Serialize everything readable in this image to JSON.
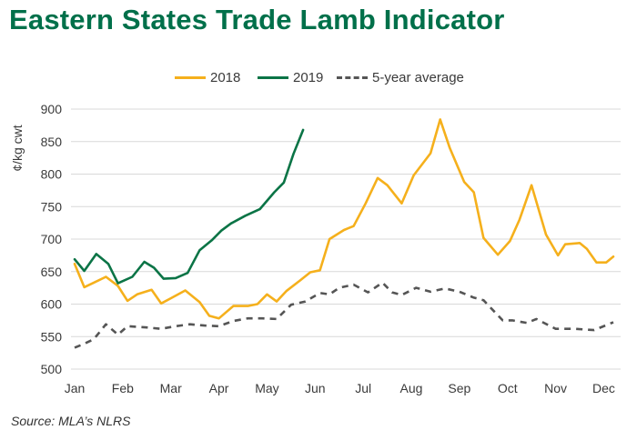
{
  "title": "Eastern States Trade Lamb Indicator",
  "source": "Source: MLA’s NLRS",
  "chart_data": {
    "type": "line",
    "title": "Eastern States Trade Lamb Indicator",
    "ylabel": "¢/kg cwt",
    "xlabel": "",
    "ylim": [
      500,
      900
    ],
    "yticks": [
      500,
      550,
      600,
      650,
      700,
      750,
      800,
      850,
      900
    ],
    "xlim": [
      0,
      11.2
    ],
    "month_labels": [
      "Jan",
      "Feb",
      "Mar",
      "Apr",
      "May",
      "Jun",
      "Jul",
      "Aug",
      "Sep",
      "Oct",
      "Nov",
      "Dec"
    ],
    "grid": "horizontal",
    "legend_position": "top-center",
    "series": [
      {
        "name": "2018",
        "color": "#f5b01c",
        "style": "solid",
        "x": [
          0,
          0.2,
          0.4,
          0.65,
          0.9,
          1.1,
          1.3,
          1.6,
          1.8,
          2.0,
          2.3,
          2.6,
          2.8,
          3.0,
          3.3,
          3.6,
          3.8,
          4.0,
          4.2,
          4.4,
          4.7,
          4.9,
          5.1,
          5.3,
          5.6,
          5.8,
          6.05,
          6.3,
          6.5,
          6.8,
          7.05,
          7.4,
          7.6,
          7.8,
          8.1,
          8.3,
          8.5,
          8.8,
          9.05,
          9.25,
          9.5,
          9.8,
          10.05,
          10.2,
          10.5,
          10.65,
          10.85,
          11.05,
          11.2
        ],
        "values": [
          662,
          626,
          633,
          642,
          628,
          605,
          615,
          622,
          601,
          609,
          621,
          603,
          582,
          578,
          597,
          597,
          600,
          615,
          604,
          620,
          637,
          649,
          652,
          700,
          714,
          720,
          755,
          794,
          783,
          755,
          798,
          832,
          884,
          840,
          788,
          772,
          702,
          676,
          697,
          730,
          783,
          707,
          675,
          692,
          694,
          685,
          664,
          664,
          673
        ]
      },
      {
        "name": "2019",
        "color": "#0b7446",
        "style": "solid",
        "x": [
          0,
          0.2,
          0.45,
          0.7,
          0.9,
          1.2,
          1.45,
          1.65,
          1.85,
          2.1,
          2.35,
          2.6,
          2.85,
          3.05,
          3.25,
          3.55,
          3.85,
          4.15,
          4.35,
          4.55,
          4.75
        ],
        "values": [
          669,
          651,
          677,
          662,
          632,
          642,
          665,
          656,
          639,
          640,
          648,
          683,
          698,
          713,
          724,
          736,
          746,
          772,
          787,
          831,
          868
        ]
      },
      {
        "name": "5-year average",
        "color": "#555555",
        "style": "dashed",
        "x": [
          0,
          0.2,
          0.4,
          0.65,
          0.9,
          1.1,
          1.5,
          1.8,
          2.1,
          2.4,
          2.7,
          3.0,
          3.3,
          3.6,
          3.9,
          4.2,
          4.5,
          4.8,
          5.1,
          5.3,
          5.5,
          5.8,
          6.1,
          6.4,
          6.6,
          6.8,
          7.1,
          7.4,
          7.7,
          8.0,
          8.3,
          8.5,
          8.9,
          9.1,
          9.4,
          9.6,
          10.0,
          10.4,
          10.8,
          11.2
        ],
        "values": [
          533,
          539,
          546,
          569,
          553,
          566,
          564,
          562,
          566,
          569,
          567,
          566,
          574,
          578,
          578,
          577,
          599,
          604,
          617,
          615,
          625,
          630,
          618,
          633,
          618,
          614,
          625,
          619,
          624,
          619,
          610,
          606,
          575,
          575,
          571,
          577,
          562,
          562,
          560,
          572
        ]
      }
    ]
  }
}
